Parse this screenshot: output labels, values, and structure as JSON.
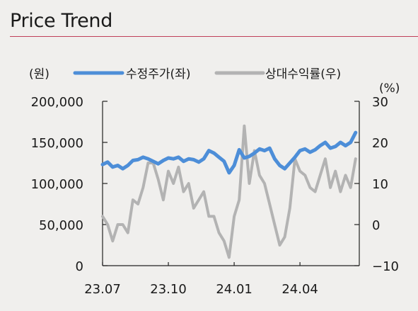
{
  "header": {
    "title": "Price Trend"
  },
  "chart_data": {
    "type": "line",
    "left_unit": "(원)",
    "right_unit": "(%)",
    "y_left": {
      "ticks": [
        "200,000",
        "150,000",
        "100,000",
        "50,000",
        "0"
      ],
      "values": [
        200000,
        150000,
        100000,
        50000,
        0
      ],
      "ylim": [
        0,
        200000
      ]
    },
    "y_right": {
      "ticks": [
        "30",
        "20",
        "10",
        "0",
        "−10"
      ],
      "values": [
        30,
        20,
        10,
        0,
        -10
      ],
      "ylim": [
        -10,
        30
      ]
    },
    "x_ticks": [
      "23.07",
      "23.10",
      "24.01",
      "24.04"
    ],
    "x_tick_positions": [
      0,
      13,
      26,
      39
    ],
    "x_range": [
      0,
      51
    ],
    "legend": {
      "placement": "top"
    },
    "series": [
      {
        "name": "수정주가(좌)",
        "axis": "left",
        "color": "#4d8ed8",
        "values": [
          123000,
          126000,
          120000,
          122000,
          118000,
          122000,
          128000,
          129000,
          132000,
          130000,
          127000,
          124000,
          128000,
          131000,
          130000,
          132000,
          127000,
          130000,
          129000,
          126000,
          130000,
          140000,
          137000,
          132000,
          127000,
          113000,
          122000,
          141000,
          131000,
          133000,
          137000,
          142000,
          140000,
          143000,
          130000,
          122000,
          118000,
          125000,
          132000,
          140000,
          142000,
          138000,
          141000,
          146000,
          150000,
          143000,
          145000,
          150000,
          146000,
          150000,
          162000
        ]
      },
      {
        "name": "상대수익률(우)",
        "axis": "right",
        "color": "#b3b3b3",
        "values": [
          2,
          0,
          -4,
          0,
          0,
          -2,
          6,
          5,
          9,
          15,
          15,
          11,
          6,
          13,
          10,
          14,
          8,
          10,
          4,
          6,
          8,
          2,
          2,
          -2,
          -4,
          -8,
          2,
          6,
          24,
          10,
          18,
          12,
          10,
          5,
          0,
          -5,
          -3,
          4,
          16,
          13,
          12,
          9,
          8,
          12,
          16,
          9,
          13,
          8,
          12,
          9,
          16
        ]
      }
    ]
  }
}
